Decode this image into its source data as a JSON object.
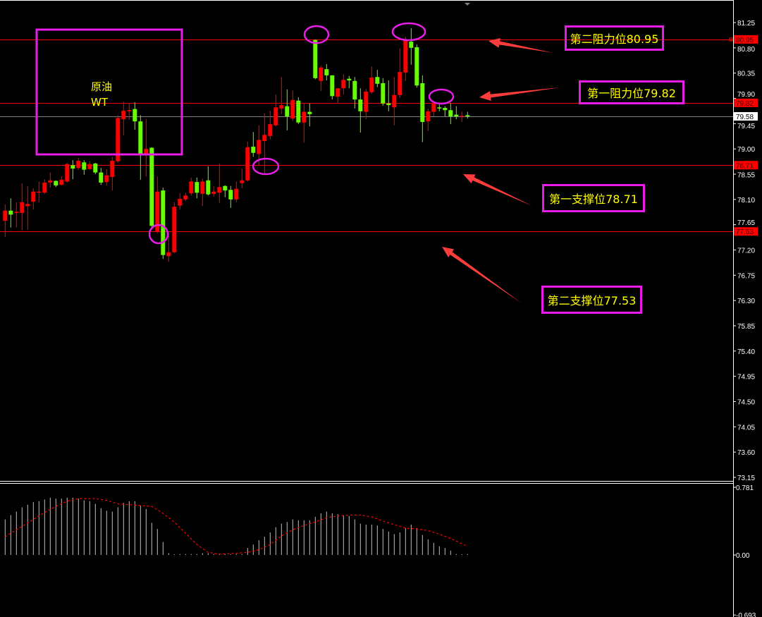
{
  "chart_data": {
    "type": "candlestick",
    "price_axis": {
      "ticks": [
        "81.25",
        "80.80",
        "80.35",
        "79.90",
        "79.45",
        "79.00",
        "78.55",
        "78.10",
        "77.65",
        "77.20",
        "76.75",
        "76.30",
        "75.85",
        "75.40",
        "74.95",
        "74.50",
        "74.05",
        "73.60",
        "73.15"
      ],
      "range": [
        73.15,
        81.25
      ]
    },
    "price_tags": [
      {
        "value": 80.95,
        "text": "80.95",
        "color": "#ff0000"
      },
      {
        "value": 79.82,
        "text": "79.82",
        "color": "#ff0000"
      },
      {
        "value": 79.58,
        "text": "79.58",
        "color": "#ffffff"
      },
      {
        "value": 78.71,
        "text": "78.71",
        "color": "#ff0000"
      },
      {
        "value": 77.53,
        "text": "77.53",
        "color": "#ff0000"
      }
    ],
    "hlines": [
      {
        "value": 80.95,
        "color": "#ff0000"
      },
      {
        "value": 79.82,
        "color": "#ff0000"
      },
      {
        "value": 79.58,
        "color": "#808080"
      },
      {
        "value": 78.71,
        "color": "#ff0000"
      },
      {
        "value": 77.53,
        "color": "#ff0000"
      }
    ],
    "up_color": "#ff0000",
    "down_color": "#66ff00",
    "candles_ohlc": [
      [
        77.72,
        78.01,
        77.43,
        77.9
      ],
      [
        77.9,
        78.12,
        77.6,
        77.83
      ],
      [
        77.86,
        78.05,
        77.6,
        77.88
      ],
      [
        77.86,
        78.39,
        77.55,
        78.05
      ],
      [
        77.98,
        78.34,
        77.56,
        78.02
      ],
      [
        78.06,
        78.3,
        77.92,
        78.24
      ],
      [
        78.23,
        78.42,
        78.05,
        78.24
      ],
      [
        78.22,
        78.46,
        78.2,
        78.4
      ],
      [
        78.4,
        78.58,
        78.31,
        78.44
      ],
      [
        78.43,
        78.44,
        78.32,
        78.35
      ],
      [
        78.36,
        78.51,
        78.35,
        78.45
      ],
      [
        78.42,
        78.75,
        78.4,
        78.73
      ],
      [
        78.71,
        78.8,
        78.46,
        78.65
      ],
      [
        78.66,
        78.84,
        78.63,
        78.79
      ],
      [
        78.76,
        78.8,
        78.54,
        78.63
      ],
      [
        78.64,
        78.78,
        78.63,
        78.73
      ],
      [
        78.74,
        78.75,
        78.55,
        78.58
      ],
      [
        78.58,
        78.66,
        78.36,
        78.4
      ],
      [
        78.41,
        78.64,
        78.35,
        78.53
      ],
      [
        78.5,
        78.86,
        78.26,
        78.79
      ],
      [
        78.78,
        79.6,
        78.75,
        79.55
      ],
      [
        79.53,
        79.84,
        79.24,
        79.68
      ],
      [
        79.67,
        79.81,
        79.52,
        79.69
      ],
      [
        79.71,
        79.83,
        79.34,
        79.49
      ],
      [
        79.49,
        79.6,
        78.45,
        78.89
      ],
      [
        78.89,
        79.53,
        78.51,
        79.0
      ],
      [
        79.02,
        79.03,
        77.6,
        77.63
      ],
      [
        77.53,
        78.51,
        77.5,
        78.24
      ],
      [
        78.26,
        78.31,
        77.04,
        77.11
      ],
      [
        77.09,
        77.51,
        76.99,
        77.16
      ],
      [
        77.16,
        78.05,
        77.14,
        77.97
      ],
      [
        77.99,
        78.21,
        77.92,
        78.11
      ],
      [
        78.1,
        78.22,
        78.07,
        78.17
      ],
      [
        78.21,
        78.49,
        78.17,
        78.42
      ],
      [
        78.41,
        78.49,
        78.12,
        78.22
      ],
      [
        78.2,
        78.47,
        77.98,
        78.42
      ],
      [
        78.44,
        78.69,
        78.17,
        78.19
      ],
      [
        78.2,
        78.34,
        78.15,
        78.24
      ],
      [
        78.22,
        78.74,
        78.04,
        78.32
      ],
      [
        78.34,
        78.35,
        78.14,
        78.26
      ],
      [
        78.27,
        78.34,
        77.95,
        78.1
      ],
      [
        78.1,
        78.42,
        78.05,
        78.29
      ],
      [
        78.39,
        78.65,
        78.3,
        78.44
      ],
      [
        78.44,
        79.13,
        78.42,
        79.03
      ],
      [
        79.04,
        79.3,
        78.86,
        78.93
      ],
      [
        78.91,
        79.42,
        78.7,
        79.16
      ],
      [
        79.14,
        79.63,
        78.55,
        79.25
      ],
      [
        79.23,
        79.68,
        79.17,
        79.44
      ],
      [
        79.42,
        79.97,
        79.4,
        79.74
      ],
      [
        79.72,
        80.28,
        79.62,
        79.78
      ],
      [
        79.76,
        80.06,
        79.33,
        79.58
      ],
      [
        79.54,
        80.04,
        79.5,
        79.87
      ],
      [
        79.86,
        79.92,
        79.44,
        79.47
      ],
      [
        79.47,
        79.81,
        79.11,
        79.66
      ],
      [
        79.66,
        79.81,
        79.4,
        79.62
      ],
      [
        80.94,
        80.95,
        80.24,
        80.26
      ],
      [
        80.21,
        80.48,
        80.03,
        80.45
      ],
      [
        80.42,
        80.51,
        80.22,
        80.31
      ],
      [
        80.31,
        80.31,
        79.88,
        79.94
      ],
      [
        79.93,
        80.08,
        79.82,
        80.08
      ],
      [
        80.08,
        80.33,
        79.97,
        80.23
      ],
      [
        80.25,
        80.3,
        80.08,
        80.22
      ],
      [
        80.21,
        80.28,
        79.72,
        79.88
      ],
      [
        79.88,
        80.08,
        79.29,
        79.67
      ],
      [
        79.66,
        80.07,
        79.53,
        80.02
      ],
      [
        80.01,
        80.47,
        79.98,
        80.27
      ],
      [
        80.28,
        80.41,
        80.1,
        80.16
      ],
      [
        80.17,
        80.26,
        79.77,
        79.81
      ],
      [
        79.81,
        80.22,
        79.67,
        79.78
      ],
      [
        79.74,
        80.28,
        79.42,
        79.96
      ],
      [
        79.96,
        80.79,
        79.91,
        80.37
      ],
      [
        80.36,
        81.0,
        80.21,
        80.94
      ],
      [
        80.91,
        81.15,
        80.5,
        80.8
      ],
      [
        80.81,
        80.86,
        80.09,
        80.13
      ],
      [
        80.17,
        80.31,
        79.12,
        79.48
      ],
      [
        79.49,
        79.72,
        79.32,
        79.67
      ],
      [
        79.66,
        79.82,
        79.58,
        79.82
      ],
      [
        79.74,
        79.79,
        79.67,
        79.72
      ],
      [
        79.73,
        79.76,
        79.58,
        79.69
      ],
      [
        79.69,
        79.82,
        79.44,
        79.58
      ],
      [
        79.61,
        79.76,
        79.53,
        79.58
      ],
      [
        79.58,
        79.66,
        79.48,
        79.59
      ],
      [
        79.6,
        79.66,
        79.54,
        79.58
      ]
    ],
    "oscillator": {
      "axis_ticks": [
        "0.781",
        "0.00",
        "-0.693"
      ],
      "range": [
        -0.693,
        0.781
      ],
      "histogram_color": "#c0c0c0",
      "signal_color": "#ff0000",
      "histogram": [
        0.41,
        0.46,
        0.5,
        0.55,
        0.58,
        0.61,
        0.62,
        0.64,
        0.66,
        0.65,
        0.65,
        0.66,
        0.66,
        0.65,
        0.63,
        0.62,
        0.59,
        0.54,
        0.51,
        0.5,
        0.55,
        0.6,
        0.62,
        0.62,
        0.57,
        0.53,
        0.37,
        0.3,
        0.15,
        0.02,
        0.0,
        0.01,
        0.01,
        0.01,
        0.01,
        0.02,
        0.02,
        0.01,
        0.01,
        0.01,
        0.0,
        0.01,
        0.01,
        0.08,
        0.12,
        0.17,
        0.21,
        0.26,
        0.32,
        0.36,
        0.38,
        0.41,
        0.4,
        0.4,
        0.4,
        0.44,
        0.48,
        0.5,
        0.48,
        0.47,
        0.46,
        0.45,
        0.41,
        0.36,
        0.35,
        0.35,
        0.34,
        0.3,
        0.27,
        0.24,
        0.26,
        0.31,
        0.35,
        0.31,
        0.23,
        0.18,
        0.14,
        0.1,
        0.08,
        0.05,
        0.01,
        0.0,
        0.01
      ],
      "signal_points": [
        [
          0,
          0.21
        ],
        [
          3,
          0.33
        ],
        [
          5,
          0.41
        ],
        [
          7,
          0.49
        ],
        [
          9,
          0.56
        ],
        [
          11,
          0.62
        ],
        [
          13,
          0.65
        ],
        [
          16,
          0.65
        ],
        [
          18,
          0.63
        ],
        [
          20,
          0.59
        ],
        [
          22,
          0.58
        ],
        [
          24,
          0.57
        ],
        [
          26,
          0.56
        ],
        [
          28,
          0.48
        ],
        [
          30,
          0.38
        ],
        [
          32,
          0.25
        ],
        [
          34,
          0.12
        ],
        [
          36,
          0.03
        ],
        [
          38,
          0.01
        ],
        [
          41,
          0.02
        ],
        [
          43,
          0.03
        ],
        [
          45,
          0.06
        ],
        [
          47,
          0.12
        ],
        [
          49,
          0.22
        ],
        [
          51,
          0.29
        ],
        [
          53,
          0.34
        ],
        [
          55,
          0.38
        ],
        [
          57,
          0.43
        ],
        [
          59,
          0.45
        ],
        [
          61,
          0.46
        ],
        [
          63,
          0.46
        ],
        [
          65,
          0.44
        ],
        [
          67,
          0.39
        ],
        [
          69,
          0.35
        ],
        [
          71,
          0.31
        ],
        [
          73,
          0.3
        ],
        [
          75,
          0.28
        ],
        [
          77,
          0.24
        ],
        [
          79,
          0.19
        ],
        [
          81,
          0.13
        ],
        [
          82,
          0.1
        ]
      ]
    },
    "annotations": {
      "box_text": [
        "原油",
        "WT"
      ],
      "labels": [
        {
          "text": "第二阻力位80.95"
        },
        {
          "text": "第一阻力位79.82"
        },
        {
          "text": "第一支撑位78.71"
        },
        {
          "text": "第二支撑位77.53"
        }
      ],
      "highlight_color": "#e81ee8",
      "arrow_color": "#ff3c3c",
      "text_color": "#ffff00"
    }
  }
}
